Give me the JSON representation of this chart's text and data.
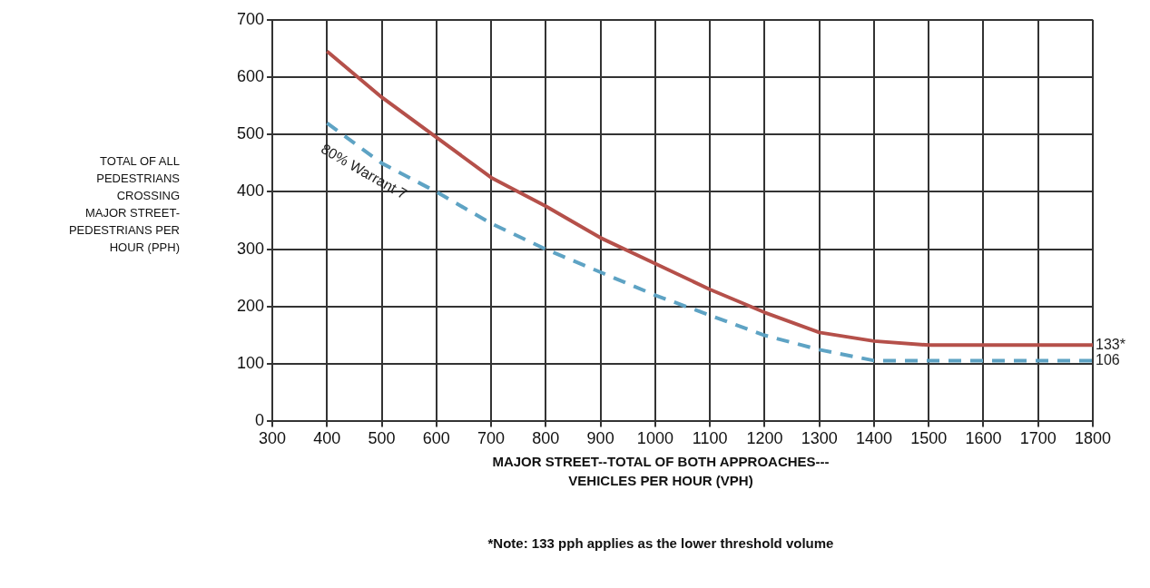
{
  "chart_data": {
    "type": "line",
    "xlabel": "MAJOR STREET--TOTAL OF BOTH APPROACHES---\nVEHICLES PER HOUR (VPH)",
    "ylabel": "TOTAL OF ALL\nPEDESTRIANS\nCROSSING\nMAJOR STREET-\nPEDESTRIANS PER\nHOUR (PPH)",
    "x": [
      400,
      500,
      600,
      700,
      800,
      900,
      1000,
      1100,
      1200,
      1300,
      1400,
      1500,
      1600,
      1700,
      1800
    ],
    "series": [
      {
        "color": "#b5504a",
        "line_style": "solid",
        "values": [
          645,
          565,
          495,
          425,
          375,
          320,
          275,
          230,
          190,
          155,
          140,
          133,
          133,
          133,
          133
        ],
        "value_labels": [
          null,
          null,
          null,
          null,
          null,
          null,
          null,
          null,
          null,
          null,
          null,
          null,
          null,
          null,
          "133*"
        ]
      },
      {
        "color": "#5ea3c4",
        "line_style": "dashed",
        "values": [
          520,
          450,
          400,
          345,
          300,
          260,
          220,
          185,
          150,
          125,
          106,
          106,
          106,
          106,
          106
        ],
        "value_labels": [
          null,
          null,
          null,
          null,
          null,
          null,
          null,
          null,
          null,
          null,
          null,
          null,
          null,
          null,
          "106"
        ]
      }
    ],
    "xlim": [
      300,
      1800
    ],
    "xticks": [
      300,
      400,
      500,
      600,
      700,
      800,
      900,
      1000,
      1100,
      1200,
      1300,
      1400,
      1500,
      1600,
      1700,
      1800
    ],
    "ylim": [
      0,
      700
    ],
    "yticks": [
      0,
      100,
      200,
      300,
      400,
      500,
      600,
      700
    ],
    "grid": true,
    "marker": "none",
    "annotations": [
      {
        "text": "80% Warrant 7",
        "x": 500,
        "y": 450
      },
      "*Note:  133  pph applies as the lower threshold volume"
    ]
  }
}
